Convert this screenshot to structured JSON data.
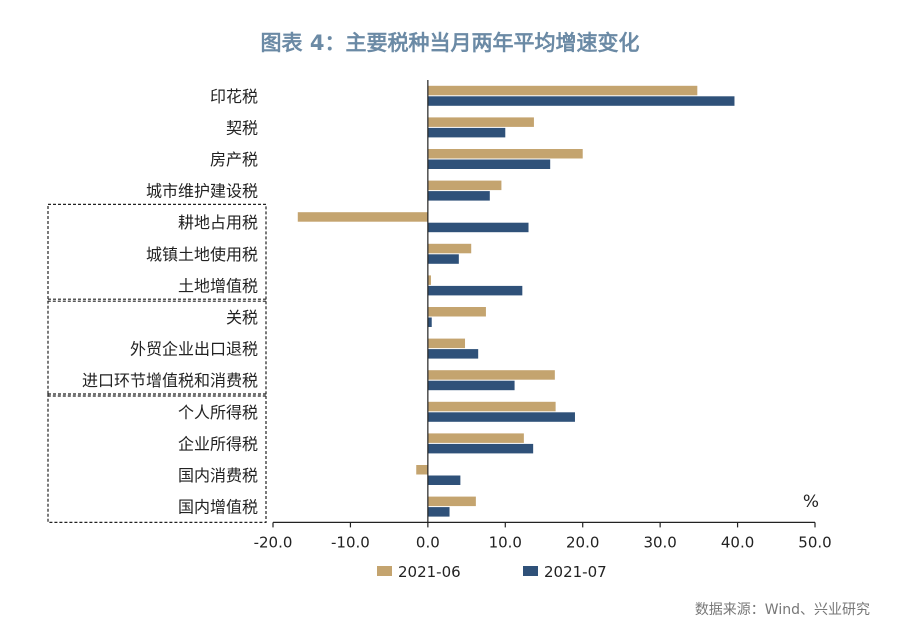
{
  "chart_data": {
    "type": "bar",
    "orientation": "horizontal",
    "title": "图表 4：主要税种当月两年平均增速变化",
    "unit": "%",
    "source": "数据来源：Wind、兴业研究",
    "xlim": [
      -20,
      50
    ],
    "xticks": [
      "-20.0",
      "-10.0",
      "0.0",
      "10.0",
      "20.0",
      "30.0",
      "40.0",
      "50.0"
    ],
    "tick_values": [
      -20,
      -10,
      0,
      10,
      20,
      30,
      40,
      50
    ],
    "categories": [
      "印花税",
      "契税",
      "房产税",
      "城市维护建设税",
      "耕地占用税",
      "城镇土地使用税",
      "土地增值税",
      "关税",
      "外贸企业出口退税",
      "进口环节增值税和消费税",
      "个人所得税",
      "企业所得税",
      "国内消费税",
      "国内增值税"
    ],
    "series": [
      {
        "name": "2021-06",
        "color": "#C4A46F",
        "values": [
          34.8,
          13.7,
          20.0,
          9.5,
          -16.8,
          5.6,
          0.4,
          7.5,
          4.8,
          16.4,
          16.5,
          12.4,
          -1.5,
          6.2
        ]
      },
      {
        "name": "2021-07",
        "color": "#2F5179",
        "values": [
          39.6,
          10.0,
          15.8,
          8.0,
          13.0,
          4.0,
          12.2,
          0.5,
          6.5,
          11.2,
          19.0,
          13.6,
          4.2,
          2.8
        ]
      }
    ],
    "groups": [
      [
        4,
        6
      ],
      [
        7,
        9
      ],
      [
        10,
        13
      ]
    ]
  }
}
